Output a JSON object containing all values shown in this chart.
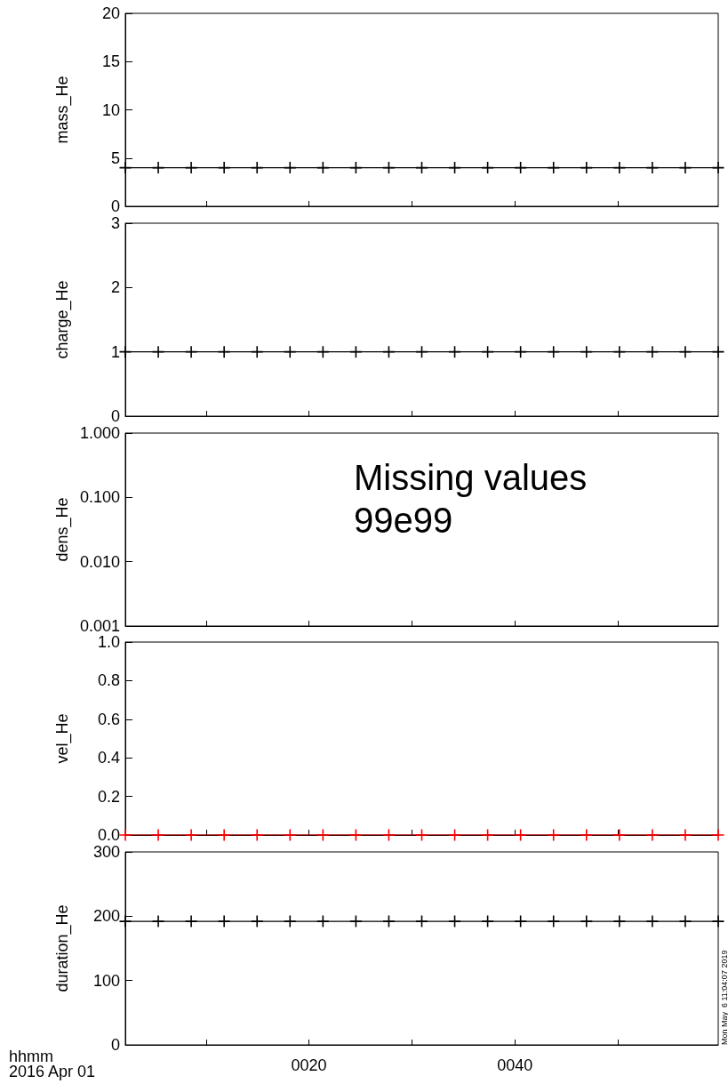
{
  "chart_data": [
    {
      "type": "line",
      "ylabel": "mass_He",
      "x": [
        2.16,
        5.36,
        8.56,
        11.76,
        14.96,
        18.16,
        21.36,
        24.56,
        27.76,
        30.96,
        34.16,
        37.36,
        40.56,
        43.76,
        46.96,
        50.16,
        53.36,
        56.56,
        59.76
      ],
      "values": [
        4,
        4,
        4,
        4,
        4,
        4,
        4,
        4,
        4,
        4,
        4,
        4,
        4,
        4,
        4,
        4,
        4,
        4,
        4
      ],
      "color": "#000000",
      "marker": "cross",
      "line_style": "solid",
      "xlim": [
        2.16,
        59.76
      ],
      "xticks": [
        10,
        20,
        30,
        40,
        50
      ],
      "ylim": [
        0,
        20
      ],
      "yticks": [
        0,
        5,
        10,
        15,
        20
      ],
      "tick_labels": "y"
    },
    {
      "type": "line",
      "ylabel": "charge_He",
      "x": [
        2.16,
        5.36,
        8.56,
        11.76,
        14.96,
        18.16,
        21.36,
        24.56,
        27.76,
        30.96,
        34.16,
        37.36,
        40.56,
        43.76,
        46.96,
        50.16,
        53.36,
        56.56,
        59.76
      ],
      "values": [
        1,
        1,
        1,
        1,
        1,
        1,
        1,
        1,
        1,
        1,
        1,
        1,
        1,
        1,
        1,
        1,
        1,
        1,
        1
      ],
      "color": "#000000",
      "marker": "cross",
      "line_style": "solid",
      "xlim": [
        2.16,
        59.76
      ],
      "xticks": [
        10,
        20,
        30,
        40,
        50
      ],
      "ylim": [
        0,
        3
      ],
      "yticks": [
        0,
        1,
        2,
        3
      ],
      "tick_labels": "y"
    },
    {
      "type": "line",
      "ylabel": "dens_He",
      "log": "y",
      "annotations": [
        "Missing values 99e99"
      ],
      "xlim": [
        2.16,
        59.76
      ],
      "xticks": [
        10,
        20,
        30,
        40,
        50
      ],
      "ylim": [
        0.001,
        1
      ],
      "yticks": [
        0.001,
        {
          "value": 0.01,
          "label": "0.010"
        },
        {
          "value": 0.1,
          "label": "0.100"
        },
        {
          "value": 1,
          "label": "1.000"
        }
      ],
      "tick_labels": "y"
    },
    {
      "type": "line",
      "ylabel": "vel_He",
      "x": [
        2.16,
        5.36,
        8.56,
        11.76,
        14.96,
        18.16,
        21.36,
        24.56,
        27.76,
        30.96,
        34.16,
        37.36,
        40.56,
        43.76,
        46.96,
        50.16,
        53.36,
        56.56,
        59.76
      ],
      "values": [
        0,
        0,
        0,
        0,
        0,
        0,
        0,
        0,
        0,
        0,
        0,
        0,
        0,
        0,
        0,
        0,
        0,
        0,
        0
      ],
      "color": "#ff0000",
      "marker": "cross",
      "line_style": "solid",
      "xlim": [
        2.16,
        59.76
      ],
      "xticks": [
        10,
        20,
        30,
        40,
        50
      ],
      "ylim": [
        0,
        1
      ],
      "yticks": [
        {
          "value": 0,
          "label": "0.0"
        },
        0.2,
        0.4,
        0.6,
        0.8,
        {
          "value": 1,
          "label": "1.0"
        }
      ],
      "tick_labels": "y"
    },
    {
      "type": "line",
      "ylabel": "duration_He",
      "x": [
        2.16,
        5.36,
        8.56,
        11.76,
        14.96,
        18.16,
        21.36,
        24.56,
        27.76,
        30.96,
        34.16,
        37.36,
        40.56,
        43.76,
        46.96,
        50.16,
        53.36,
        56.56,
        59.76
      ],
      "values": [
        192,
        192,
        192,
        192,
        192,
        192,
        192,
        192,
        192,
        192,
        192,
        192,
        192,
        192,
        192,
        192,
        192,
        192,
        192
      ],
      "color": "#000000",
      "marker": "cross",
      "line_style": "solid",
      "xlim": [
        2.16,
        59.76
      ],
      "xticks": [
        {
          "value": 10,
          "label": null
        },
        {
          "value": 20,
          "label": "0020"
        },
        {
          "value": 30,
          "label": null
        },
        {
          "value": 40,
          "label": "0040"
        },
        {
          "value": 50,
          "label": null
        }
      ],
      "ylim": [
        0,
        300
      ],
      "yticks": [
        0,
        100,
        200,
        300
      ],
      "annotations": [
        "hhmm",
        "2016 Apr 01",
        "Mon May  6 11:04:07 2019"
      ]
    }
  ]
}
